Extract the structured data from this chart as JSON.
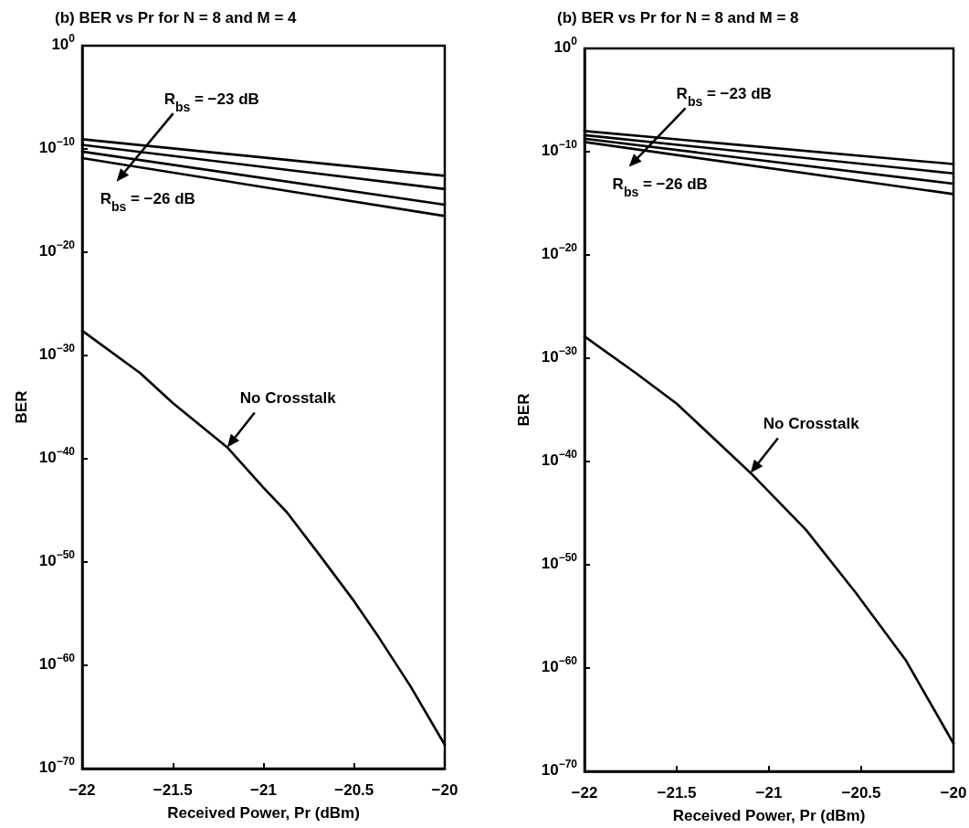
{
  "chart_data": [
    {
      "type": "line",
      "title": "(b) BER vs Pr for N = 8 and M = 4",
      "xlabel": "Received Power, Pr (dBm)",
      "ylabel": "BER",
      "log": "y",
      "grid": false,
      "marker": "none",
      "line_style": "solid",
      "xlim": [
        -22,
        -20
      ],
      "xticks": [
        {
          "value": -22,
          "label": "−22"
        },
        {
          "value": -21.5,
          "label": "−21.5"
        },
        {
          "value": -21,
          "label": "−21"
        },
        {
          "value": -20.5,
          "label": "−20.5"
        },
        {
          "value": -20,
          "label": "−20"
        }
      ],
      "ylim": [
        1e-70,
        1
      ],
      "yticks": [
        {
          "value": 1,
          "label": "10$^{0}$"
        },
        {
          "value": 1e-10,
          "label": "10$^{−10}$"
        },
        {
          "value": 1e-20,
          "label": "10$^{−20}$"
        },
        {
          "value": 1e-30,
          "label": "10$^{−30}$"
        },
        {
          "value": 1e-40,
          "label": "10$^{−40}$"
        },
        {
          "value": 1e-50,
          "label": "10$^{−50}$"
        },
        {
          "value": 1e-60,
          "label": "10$^{−60}$"
        },
        {
          "value": 1e-70,
          "label": "10$^{−70}$"
        }
      ],
      "series": [
        {
          "color": "#000000",
          "x": [
            -22,
            -20
          ],
          "values": [
            8.7e-10,
            2.5e-13
          ]
        },
        {
          "color": "#000000",
          "x": [
            -22,
            -20
          ],
          "values": [
            2.5e-10,
            1.3e-14
          ]
        },
        {
          "color": "#000000",
          "x": [
            -22,
            -20
          ],
          "values": [
            5.6e-11,
            4e-16
          ]
        },
        {
          "color": "#000000",
          "x": [
            -22,
            -20
          ],
          "values": [
            1.3e-11,
            3.2e-17
          ]
        },
        {
          "color": "#000000",
          "x": [
            -22,
            -21.68,
            -21.5,
            -21.2,
            -21,
            -20.87,
            -20.7,
            -20.5,
            -20.36,
            -20.19,
            -20
          ],
          "values": [
            2.5e-28,
            2e-32,
            2.5e-35,
            1.3e-39,
            1.6e-43,
            6.3e-46,
            7.9e-50,
            1.6e-54,
            4e-58,
            1e-62,
            2e-68
          ]
        }
      ],
      "annotations": [
        {
          "text": "R$_{bs}$ = −23 dB",
          "x": -21.75,
          "y": 5e-10
        },
        {
          "text": "R$_{bs}$ = −26 dB",
          "x": -21.75,
          "y": 4e-12
        },
        {
          "text": "No Crosstalk",
          "x": -21.2,
          "y": 1.3e-39
        }
      ]
    },
    {
      "type": "line",
      "title": "(b) BER vs Pr for N = 8 and M = 8",
      "xlabel": "Received Power, Pr (dBm)",
      "ylabel": "BER",
      "log": "y",
      "grid": false,
      "marker": "none",
      "line_style": "solid",
      "xlim": [
        -22,
        -20
      ],
      "xticks": [
        {
          "value": -22,
          "label": "−22"
        },
        {
          "value": -21.5,
          "label": "−21.5"
        },
        {
          "value": -21,
          "label": "−21"
        },
        {
          "value": -20.5,
          "label": "−20.5"
        },
        {
          "value": -20,
          "label": "−20"
        }
      ],
      "ylim": [
        1e-70,
        1
      ],
      "yticks": [
        {
          "value": 1,
          "label": "10$^{0}$"
        },
        {
          "value": 1e-10,
          "label": "10$^{−10}$"
        },
        {
          "value": 1e-20,
          "label": "10$^{−20}$"
        },
        {
          "value": 1e-30,
          "label": "10$^{−30}$"
        },
        {
          "value": 1e-40,
          "label": "10$^{−40}$"
        },
        {
          "value": 1e-50,
          "label": "10$^{−50}$"
        },
        {
          "value": 1e-60,
          "label": "10$^{−60}$"
        },
        {
          "value": 1e-70,
          "label": "10$^{−70}$"
        }
      ],
      "series": [
        {
          "color": "#000000",
          "x": [
            -22,
            -20
          ],
          "values": [
            1e-08,
            6.3e-12
          ]
        },
        {
          "color": "#000000",
          "x": [
            -22,
            -20
          ],
          "values": [
            4e-09,
            7.9e-13
          ]
        },
        {
          "color": "#000000",
          "x": [
            -22,
            -20
          ],
          "values": [
            1.8e-09,
            7.9e-14
          ]
        },
        {
          "color": "#000000",
          "x": [
            -22,
            -20
          ],
          "values": [
            8.7e-10,
            7.9e-15
          ]
        },
        {
          "color": "#000000",
          "x": [
            -22,
            -21.72,
            -21.5,
            -21.1,
            -20.8,
            -20.53,
            -20.26,
            -20
          ],
          "values": [
            1.3e-28,
            3.5e-32,
            4e-35,
            7.9e-42,
            2.5e-47,
            2e-53,
            6.3e-60,
            5e-68
          ]
        }
      ],
      "annotations": [
        {
          "text": "R$_{bs}$ = −23 dB",
          "x": -21.7,
          "y": 3e-09
        },
        {
          "text": "R$_{bs}$ = −26 dB",
          "x": -21.7,
          "y": 2e-10
        },
        {
          "text": "No Crosstalk",
          "x": -21.1,
          "y": 7.9e-42
        }
      ]
    }
  ]
}
